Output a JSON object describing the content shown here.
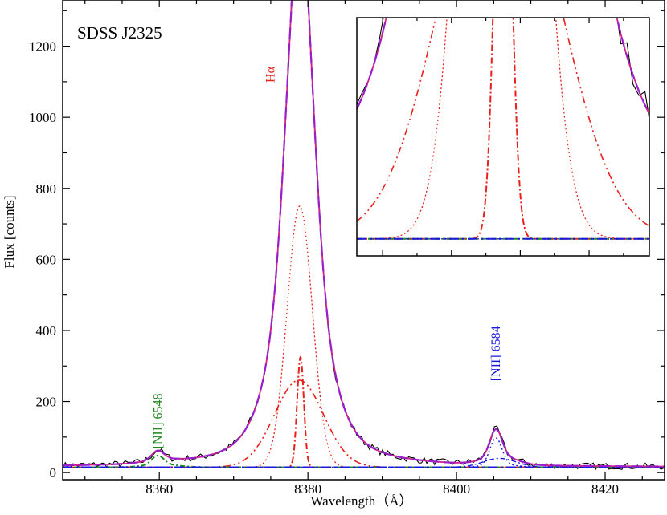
{
  "chart_data": {
    "type": "line",
    "title": "SDSS J2325",
    "xlabel": "Wavelength（Å）",
    "ylabel": "Flux [counts]",
    "xlim": [
      8347,
      8428
    ],
    "ylim": [
      -20,
      1330
    ],
    "xticks": [
      8360,
      8380,
      8400,
      8420
    ],
    "yticks": [
      0,
      200,
      400,
      600,
      800,
      1000,
      1200
    ],
    "grid": false,
    "annotations": [
      {
        "text": "Hα",
        "x": 8375.5,
        "y": 1120,
        "color": "#e8211c"
      },
      {
        "text": "[NII] 6548",
        "x": 8359.8,
        "y": 145,
        "color": "#1e8a1e"
      },
      {
        "text": "[NII] 6584",
        "x": 8405.3,
        "y": 335,
        "color": "#1818dd"
      }
    ],
    "colors": {
      "observed": "#000000",
      "total_fit": "#9a1fc8",
      "halpha": "#e8211c",
      "nii_6548": "#1e8a1e",
      "nii_6584": "#1818dd",
      "continuum": "#1818dd"
    },
    "model": {
      "continuum": 15,
      "halpha_broad_lorentz": {
        "amplitude": 530,
        "center": 8379.0,
        "hwhm": 3.2
      },
      "halpha_gauss_wide": {
        "amplitude": 245,
        "center": 8378.8,
        "sigma": 3.3
      },
      "halpha_gauss_mid": {
        "amplitude": 735,
        "center": 8378.9,
        "sigma": 1.7
      },
      "halpha_narrow": {
        "amplitude": 310,
        "center": 8379.0,
        "sigma": 0.45
      },
      "nii_6584_narrow": {
        "amplitude": 75,
        "center": 8405.3,
        "sigma": 0.8
      },
      "nii_6584_broad": {
        "amplitude": 25,
        "center": 8405.8,
        "sigma": 2.2
      },
      "nii_6548_narrow": {
        "amplitude": 25,
        "center": 8359.8,
        "sigma": 0.8
      },
      "nii_6548_broad": {
        "amplitude": 8,
        "center": 8360.3,
        "sigma": 2.2
      },
      "noise_amplitude": 9,
      "sample_step": 0.35
    },
    "inset": {
      "xlim": [
        8370.5,
        8387.5
      ],
      "ylim": [
        -10,
        130
      ],
      "baseline": 0
    }
  }
}
